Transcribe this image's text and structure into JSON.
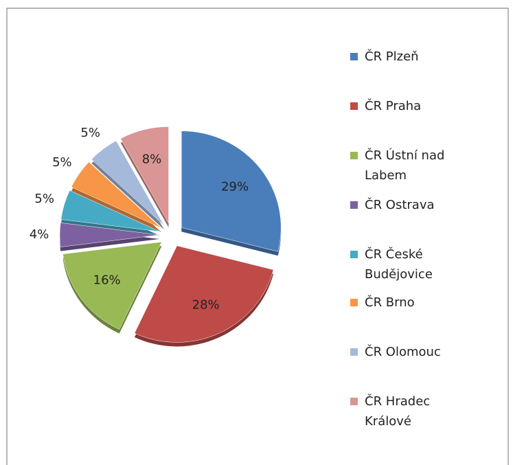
{
  "chart_data": {
    "type": "pie",
    "categories": [
      "ČR Plzeň",
      "ČR Praha",
      "ČR Ústní nad Labem",
      "ČR Ostrava",
      "ČR České Budějovice",
      "ČR Brno",
      "ČR Olomouc",
      "ČR Hradec Králové"
    ],
    "values": [
      29,
      28,
      16,
      4,
      5,
      5,
      5,
      8
    ],
    "value_labels": [
      "29%",
      "28%",
      "16%",
      "4%",
      "5%",
      "5%",
      "5%",
      "8%"
    ],
    "colors": [
      "#4a7ebb",
      "#be4b48",
      "#98b954",
      "#7d60a0",
      "#46aac5",
      "#f79646",
      "#a5b9db",
      "#d99694"
    ],
    "legend": "right"
  }
}
